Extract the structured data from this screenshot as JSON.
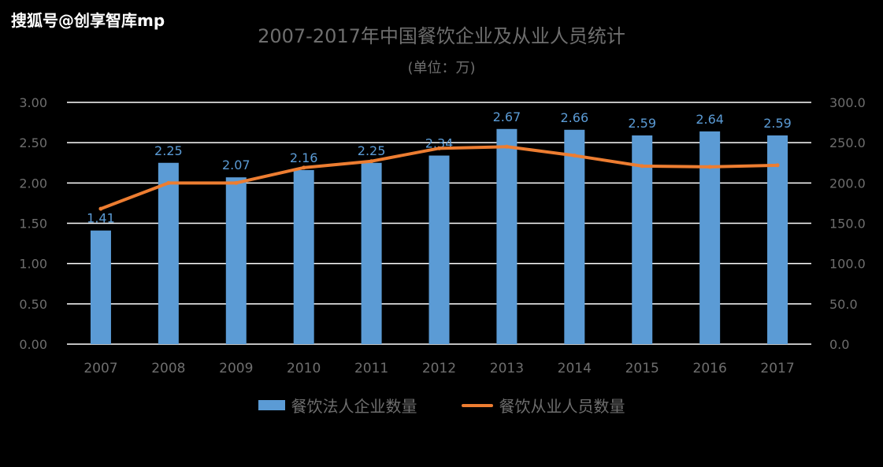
{
  "watermark": "搜狐号@创享智库mp",
  "chart_data": {
    "type": "bar",
    "title": "2007-2017年中国餐饮企业及从业人员统计",
    "subtitle": "(单位：万)",
    "categories": [
      "2007",
      "2008",
      "2009",
      "2010",
      "2011",
      "2012",
      "2013",
      "2014",
      "2015",
      "2016",
      "2017"
    ],
    "series": [
      {
        "name": "餐饮法人企业数量",
        "type": "bar",
        "axis": "left",
        "values": [
          1.41,
          2.25,
          2.07,
          2.16,
          2.25,
          2.34,
          2.67,
          2.66,
          2.59,
          2.64,
          2.59
        ],
        "labels": [
          "1.41",
          "2.25",
          "2.07",
          "2.16",
          "2.25",
          "2.34",
          "2.67",
          "2.66",
          "2.59",
          "2.64",
          "2.59"
        ]
      },
      {
        "name": "餐饮从业人员数量",
        "type": "line",
        "axis": "right",
        "values": [
          168,
          200,
          200,
          219,
          227,
          243,
          245,
          234,
          221,
          220,
          222
        ]
      }
    ],
    "y_left": {
      "ticks": [
        "0.00",
        "0.50",
        "1.00",
        "1.50",
        "2.00",
        "2.50",
        "3.00"
      ],
      "range": [
        0,
        3
      ]
    },
    "y_right": {
      "ticks": [
        "0.0",
        "50.0",
        "100.0",
        "150.0",
        "200.0",
        "250.0",
        "300.0"
      ],
      "range": [
        0,
        300
      ]
    },
    "grid": true,
    "legend_position": "bottom",
    "colors": {
      "bar": "#5b9bd5",
      "line": "#ed7d31",
      "text": "#6e6e6e",
      "grid": "#ffffff",
      "bar_label": "#5b9bd5"
    }
  }
}
